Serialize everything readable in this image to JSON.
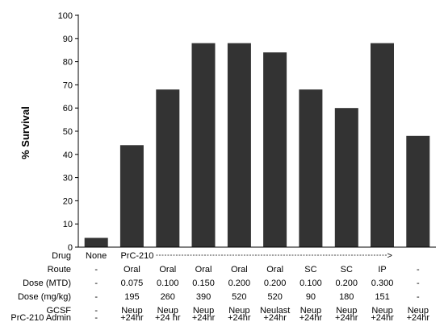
{
  "chart_data": {
    "type": "bar",
    "ylabel": "% Survival",
    "ylim": [
      0,
      100
    ],
    "yticks": [
      0,
      10,
      20,
      30,
      40,
      50,
      60,
      70,
      80,
      90,
      100
    ],
    "values": [
      4,
      44,
      68,
      88,
      88,
      84,
      68,
      60,
      88,
      48
    ],
    "bar_color": "#333333"
  },
  "table": {
    "rows": [
      {
        "label": "Drug",
        "cells": [
          "None",
          "PrC-210",
          "",
          "",
          "",
          "",
          "",
          "",
          "",
          ""
        ]
      },
      {
        "label": "Route",
        "cells": [
          "-",
          "Oral",
          "Oral",
          "Oral",
          "Oral",
          "Oral",
          "SC",
          "SC",
          "IP",
          "-"
        ]
      },
      {
        "label": "Dose (MTD)",
        "cells": [
          "-",
          "0.075",
          "0.100",
          "0.150",
          "0.200",
          "0.200",
          "0.100",
          "0.200",
          "0.300",
          "-"
        ]
      },
      {
        "label": "Dose (mg/kg)",
        "cells": [
          "-",
          "195",
          "260",
          "390",
          "520",
          "520",
          "90",
          "180",
          "151",
          "-"
        ]
      },
      {
        "label": "GCSF",
        "cells": [
          "-",
          "Neup",
          "Neup",
          "Neup",
          "Neup",
          "Neulast",
          "Neup",
          "Neup",
          "Neup",
          "Neup"
        ]
      },
      {
        "label": "PrC-210 Admin",
        "cells": [
          "-",
          "+24hr",
          "+24 hr",
          "+24hr",
          "+24hr",
          "+24hr",
          "+24hr",
          "+24hr",
          "+24hr",
          "+24hr"
        ]
      }
    ],
    "drug_arrow_end": "->"
  }
}
